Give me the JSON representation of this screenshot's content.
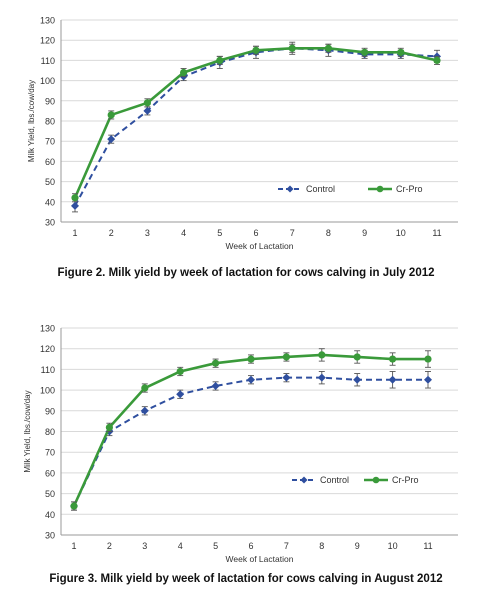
{
  "colors": {
    "control": "#2f4f9f",
    "crpro": "#3a9a3a",
    "grid": "#d9d9d9",
    "axis": "#9a9a9a"
  },
  "chart_data": [
    {
      "type": "line",
      "xlabel": "Week of Lactation",
      "ylabel": "Milk Yield, lbs./cow/day",
      "ylim": [
        30,
        130
      ],
      "yticks": [
        30,
        40,
        50,
        60,
        70,
        80,
        90,
        100,
        110,
        120,
        130
      ],
      "x": [
        1,
        2,
        3,
        4,
        5,
        6,
        7,
        8,
        9,
        10,
        11
      ],
      "grid": true,
      "legend_position": "bottom-right",
      "caption": "Figure 2. Milk yield by week of lactation for cows calving in July 2012",
      "series": [
        {
          "name": "Control",
          "style": "dashed",
          "values": [
            38,
            71,
            85,
            102,
            109,
            114,
            116,
            115,
            113,
            113,
            112
          ],
          "error": [
            3,
            2,
            2,
            2,
            3,
            3,
            3,
            3,
            2,
            2,
            3
          ]
        },
        {
          "name": "Cr-Pro",
          "style": "solid",
          "values": [
            42,
            83,
            89,
            104,
            110,
            115,
            116,
            116,
            114,
            114,
            110
          ],
          "error": [
            2,
            2,
            2,
            2,
            2,
            2,
            2,
            2,
            2,
            2,
            2
          ]
        }
      ]
    },
    {
      "type": "line",
      "xlabel": "Week of Lactation",
      "ylabel": "Milk Yield, lbs./cow/day",
      "ylim": [
        30,
        130
      ],
      "yticks": [
        30,
        40,
        50,
        60,
        70,
        80,
        90,
        100,
        110,
        120,
        130
      ],
      "x": [
        1,
        2,
        3,
        4,
        5,
        6,
        7,
        8,
        9,
        10,
        11
      ],
      "grid": true,
      "legend_position": "bottom-center",
      "caption": "Figure 3. Milk yield by week of lactation for cows calving in August 2012",
      "series": [
        {
          "name": "Control",
          "style": "dashed",
          "values": [
            44,
            80,
            90,
            98,
            102,
            105,
            106,
            106,
            105,
            105,
            105
          ],
          "error": [
            2,
            2,
            2,
            2,
            2,
            2,
            2,
            3,
            3,
            4,
            4
          ]
        },
        {
          "name": "Cr-Pro",
          "style": "solid",
          "values": [
            44,
            82,
            101,
            109,
            113,
            115,
            116,
            117,
            116,
            115,
            115
          ],
          "error": [
            2,
            2,
            2,
            2,
            2,
            2,
            2,
            3,
            3,
            3,
            4
          ]
        }
      ]
    }
  ]
}
